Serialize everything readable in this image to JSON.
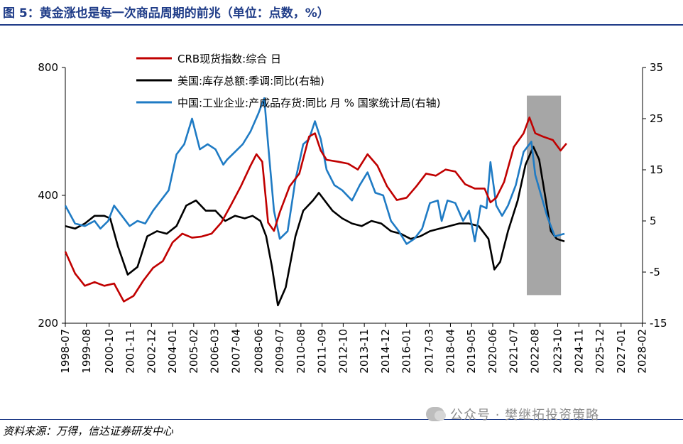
{
  "title": "图 5：黄金涨也是每一次商品周期的前兆（单位：点数，%）",
  "source": "资料来源：万得，信达证券研发中心",
  "watermark": "公众号 · 樊继拓投资策略",
  "colors": {
    "crb": "#c00000",
    "us": "#000000",
    "cn": "#1f7bc4",
    "shade": "#a6a6a6",
    "title": "#1f3c88"
  },
  "chart_data": {
    "type": "line",
    "x": [
      "1998-07",
      "1999-08",
      "2000-10",
      "2001-11",
      "2002-12",
      "2004-01",
      "2005-02",
      "2006-03",
      "2007-04",
      "2008-06",
      "2009-07",
      "2010-08",
      "2011-09",
      "2012-10",
      "2013-11",
      "2014-12",
      "2016-01",
      "2017-03",
      "2018-04",
      "2019-05",
      "2020-06",
      "2021-07",
      "2022-08",
      "2023-10",
      "2024-11",
      "2025-12",
      "2027-01",
      "2028-02"
    ],
    "left_axis": {
      "ticks": [
        "200",
        "400",
        "800"
      ],
      "log": true,
      "range": [
        200,
        800
      ]
    },
    "right_axis": {
      "ticks": [
        "-15",
        "-5",
        "5",
        "15",
        "25",
        "35"
      ],
      "range": [
        -15,
        35
      ]
    },
    "shaded_region": [
      "2022-03",
      "2023-12"
    ],
    "legend_position": "top-center",
    "series": [
      {
        "name": "CRB现货指数:综合 日",
        "axis": "left",
        "color": "#c00000",
        "points": [
          [
            1998.5,
            295
          ],
          [
            1999.0,
            262
          ],
          [
            1999.5,
            245
          ],
          [
            2000.0,
            250
          ],
          [
            2000.5,
            245
          ],
          [
            2001.0,
            248
          ],
          [
            2001.5,
            225
          ],
          [
            2002.0,
            232
          ],
          [
            2002.5,
            252
          ],
          [
            2003.0,
            270
          ],
          [
            2003.5,
            280
          ],
          [
            2004.0,
            310
          ],
          [
            2004.5,
            325
          ],
          [
            2005.0,
            318
          ],
          [
            2005.5,
            320
          ],
          [
            2006.0,
            325
          ],
          [
            2006.5,
            345
          ],
          [
            2007.0,
            380
          ],
          [
            2007.5,
            420
          ],
          [
            2008.0,
            470
          ],
          [
            2008.3,
            500
          ],
          [
            2008.6,
            480
          ],
          [
            2008.9,
            345
          ],
          [
            2009.2,
            330
          ],
          [
            2009.5,
            365
          ],
          [
            2010.0,
            420
          ],
          [
            2010.5,
            450
          ],
          [
            2011.0,
            550
          ],
          [
            2011.3,
            560
          ],
          [
            2011.6,
            510
          ],
          [
            2011.9,
            485
          ],
          [
            2012.5,
            480
          ],
          [
            2013.0,
            475
          ],
          [
            2013.5,
            460
          ],
          [
            2014.0,
            500
          ],
          [
            2014.5,
            470
          ],
          [
            2015.0,
            420
          ],
          [
            2015.5,
            390
          ],
          [
            2016.0,
            395
          ],
          [
            2016.5,
            420
          ],
          [
            2017.0,
            450
          ],
          [
            2017.5,
            445
          ],
          [
            2018.0,
            460
          ],
          [
            2018.5,
            455
          ],
          [
            2019.0,
            425
          ],
          [
            2019.5,
            415
          ],
          [
            2020.0,
            415
          ],
          [
            2020.3,
            385
          ],
          [
            2020.6,
            395
          ],
          [
            2021.0,
            430
          ],
          [
            2021.5,
            520
          ],
          [
            2022.0,
            560
          ],
          [
            2022.3,
            610
          ],
          [
            2022.6,
            560
          ],
          [
            2023.0,
            550
          ],
          [
            2023.5,
            540
          ],
          [
            2023.9,
            510
          ],
          [
            2024.2,
            530
          ]
        ]
      },
      {
        "name": "美国:库存总额:季调:同比(右轴)",
        "axis": "right",
        "color": "#000000",
        "points": [
          [
            1998.5,
            4.0
          ],
          [
            1999.0,
            3.5
          ],
          [
            1999.5,
            4.5
          ],
          [
            2000.0,
            6.0
          ],
          [
            2000.5,
            6.0
          ],
          [
            2000.8,
            5.5
          ],
          [
            2001.2,
            0
          ],
          [
            2001.7,
            -5.5
          ],
          [
            2002.2,
            -4.0
          ],
          [
            2002.7,
            2.0
          ],
          [
            2003.2,
            3.0
          ],
          [
            2003.7,
            2.5
          ],
          [
            2004.2,
            4.0
          ],
          [
            2004.7,
            8.0
          ],
          [
            2005.2,
            9.0
          ],
          [
            2005.7,
            7.0
          ],
          [
            2006.2,
            7.0
          ],
          [
            2006.7,
            5.0
          ],
          [
            2007.2,
            6.0
          ],
          [
            2007.7,
            5.5
          ],
          [
            2008.1,
            6.0
          ],
          [
            2008.5,
            5.0
          ],
          [
            2008.8,
            2.0
          ],
          [
            2009.1,
            -4.0
          ],
          [
            2009.4,
            -11.5
          ],
          [
            2009.8,
            -8.0
          ],
          [
            2010.3,
            2.0
          ],
          [
            2010.7,
            7.0
          ],
          [
            2011.2,
            9.0
          ],
          [
            2011.5,
            10.5
          ],
          [
            2011.9,
            8.5
          ],
          [
            2012.2,
            7.0
          ],
          [
            2012.7,
            5.5
          ],
          [
            2013.2,
            4.5
          ],
          [
            2013.7,
            4.0
          ],
          [
            2014.2,
            5.0
          ],
          [
            2014.7,
            4.5
          ],
          [
            2015.2,
            3.0
          ],
          [
            2015.7,
            2.5
          ],
          [
            2016.2,
            1.5
          ],
          [
            2016.7,
            2.0
          ],
          [
            2017.2,
            3.0
          ],
          [
            2017.7,
            3.5
          ],
          [
            2018.2,
            4.0
          ],
          [
            2018.7,
            4.5
          ],
          [
            2019.2,
            4.5
          ],
          [
            2019.7,
            4.0
          ],
          [
            2020.2,
            1.5
          ],
          [
            2020.5,
            -4.5
          ],
          [
            2020.8,
            -3.0
          ],
          [
            2021.2,
            3.0
          ],
          [
            2021.7,
            9.0
          ],
          [
            2022.1,
            16.0
          ],
          [
            2022.5,
            19.5
          ],
          [
            2022.8,
            17.0
          ],
          [
            2023.1,
            10.0
          ],
          [
            2023.4,
            3.0
          ],
          [
            2023.7,
            1.5
          ],
          [
            2024.1,
            1.0
          ]
        ]
      },
      {
        "name": "中国:工业企业:产成品存货:同比 月 % 国家统计局(右轴)",
        "axis": "right",
        "color": "#1f7bc4",
        "points": [
          [
            1998.5,
            8.0
          ],
          [
            1999.0,
            4.5
          ],
          [
            1999.5,
            4.0
          ],
          [
            2000.0,
            5.0
          ],
          [
            2000.3,
            3.5
          ],
          [
            2000.7,
            5.0
          ],
          [
            2001.0,
            8.0
          ],
          [
            2001.4,
            6.0
          ],
          [
            2001.8,
            4.0
          ],
          [
            2002.2,
            5.0
          ],
          [
            2002.6,
            4.5
          ],
          [
            2003.0,
            7.0
          ],
          [
            2003.4,
            9.0
          ],
          [
            2003.8,
            11.0
          ],
          [
            2004.2,
            18.0
          ],
          [
            2004.6,
            20.0
          ],
          [
            2005.0,
            25.0
          ],
          [
            2005.4,
            19.0
          ],
          [
            2005.8,
            20.0
          ],
          [
            2006.2,
            19.0
          ],
          [
            2006.6,
            16.0
          ],
          [
            2006.8,
            17.0
          ],
          [
            2007.2,
            18.5
          ],
          [
            2007.6,
            20.0
          ],
          [
            2008.0,
            22.5
          ],
          [
            2008.4,
            26.0
          ],
          [
            2008.7,
            29.0
          ],
          [
            2008.9,
            20.0
          ],
          [
            2009.2,
            7.0
          ],
          [
            2009.5,
            1.5
          ],
          [
            2009.9,
            3.0
          ],
          [
            2010.3,
            13.0
          ],
          [
            2010.7,
            20.0
          ],
          [
            2011.0,
            21.0
          ],
          [
            2011.3,
            24.5
          ],
          [
            2011.6,
            21.0
          ],
          [
            2011.9,
            15.0
          ],
          [
            2012.3,
            12.0
          ],
          [
            2012.7,
            11.0
          ],
          [
            2013.2,
            9.0
          ],
          [
            2013.6,
            12.0
          ],
          [
            2014.0,
            14.5
          ],
          [
            2014.4,
            10.5
          ],
          [
            2014.8,
            10.0
          ],
          [
            2015.2,
            5.0
          ],
          [
            2015.6,
            3.0
          ],
          [
            2016.0,
            0.5
          ],
          [
            2016.4,
            1.5
          ],
          [
            2016.8,
            3.5
          ],
          [
            2017.2,
            8.5
          ],
          [
            2017.6,
            9.0
          ],
          [
            2017.8,
            5.0
          ],
          [
            2018.1,
            9.0
          ],
          [
            2018.5,
            8.5
          ],
          [
            2018.9,
            5.0
          ],
          [
            2019.2,
            7.0
          ],
          [
            2019.5,
            1.0
          ],
          [
            2019.8,
            8.0
          ],
          [
            2020.1,
            7.5
          ],
          [
            2020.3,
            16.5
          ],
          [
            2020.6,
            8.0
          ],
          [
            2020.9,
            6.0
          ],
          [
            2021.2,
            8.0
          ],
          [
            2021.6,
            12.0
          ],
          [
            2022.0,
            18.5
          ],
          [
            2022.4,
            20.5
          ],
          [
            2022.6,
            14.0
          ],
          [
            2022.9,
            10.0
          ],
          [
            2023.2,
            6.0
          ],
          [
            2023.6,
            2.0
          ],
          [
            2024.1,
            2.5
          ]
        ]
      }
    ]
  }
}
